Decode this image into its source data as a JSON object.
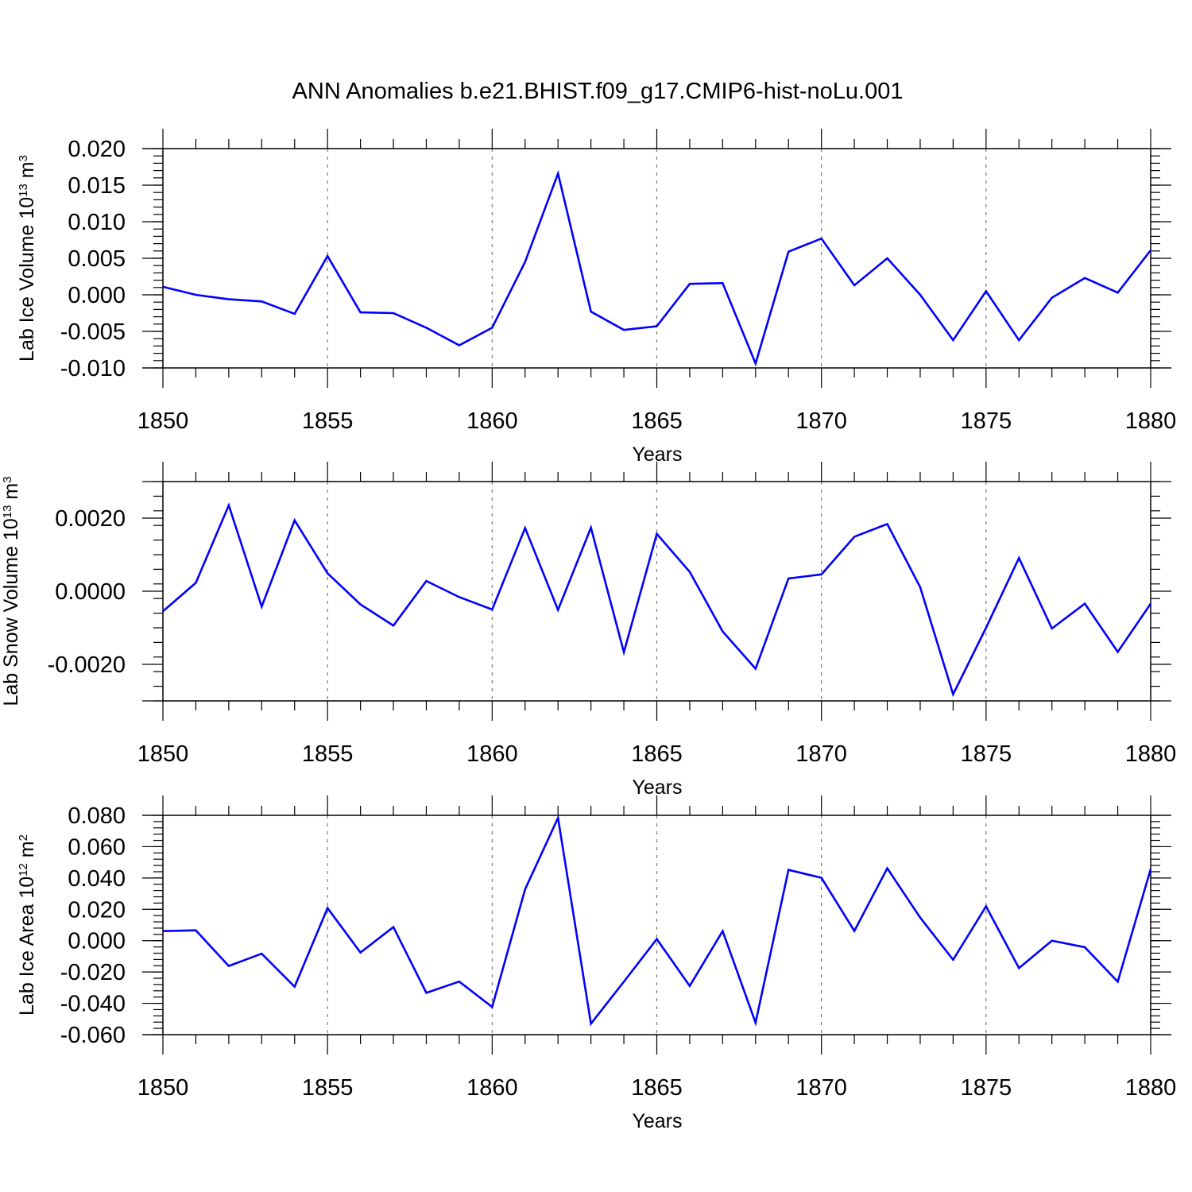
{
  "title": "ANN Anomalies b.e21.BHIST.f09_g17.CMIP6-hist-noLu.001",
  "line_color": "#0000ff",
  "chart_data": [
    {
      "type": "line",
      "ylabel": {
        "prefix": "Lab Ice Volume 10",
        "exponent": "13",
        "middle": " m",
        "unit_power": "3"
      },
      "xlabel": "Years",
      "xlim": [
        1850,
        1880
      ],
      "ylim": [
        -0.01,
        0.02
      ],
      "x_ticks": [
        "1850",
        "1855",
        "1860",
        "1865",
        "1870",
        "1875",
        "1880"
      ],
      "y_ticks": [
        "-0.010",
        "-0.005",
        "0.000",
        "0.005",
        "0.010",
        "0.015",
        "0.020"
      ],
      "grid": "vertical dashed at labeled years",
      "series": [
        {
          "x": [
            1850,
            1851,
            1852,
            1853,
            1854,
            1855,
            1856,
            1857,
            1858,
            1859,
            1860,
            1861,
            1862,
            1863,
            1864,
            1865,
            1866,
            1867,
            1868,
            1869,
            1870,
            1871,
            1872,
            1873,
            1874,
            1875,
            1876,
            1877,
            1878,
            1879,
            1880
          ],
          "values": [
            0.0011,
            0.0,
            -0.0006,
            -0.0009,
            -0.0026,
            0.0053,
            -0.0024,
            -0.0025,
            -0.0045,
            -0.0069,
            -0.0045,
            0.0045,
            0.0166,
            -0.0023,
            -0.0048,
            -0.0043,
            0.0015,
            0.0016,
            -0.0094,
            0.0059,
            0.0077,
            0.0013,
            0.005,
            0.0,
            -0.0062,
            0.0005,
            -0.0062,
            -0.0004,
            0.0023,
            0.0003,
            0.0061
          ]
        }
      ]
    },
    {
      "type": "line",
      "ylabel": {
        "prefix": "Lab Snow Volume 10",
        "exponent": "13",
        "middle": " m",
        "unit_power": "3"
      },
      "xlabel": "Years",
      "xlim": [
        1850,
        1880
      ],
      "ylim": [
        -0.003,
        0.003
      ],
      "x_ticks": [
        "1850",
        "1855",
        "1860",
        "1865",
        "1870",
        "1875",
        "1880"
      ],
      "y_ticks": [
        "-0.0020",
        "0.0000",
        "0.0020"
      ],
      "grid": "vertical dashed at labeled years",
      "series": [
        {
          "x": [
            1850,
            1851,
            1852,
            1853,
            1854,
            1855,
            1856,
            1857,
            1858,
            1859,
            1860,
            1861,
            1862,
            1863,
            1864,
            1865,
            1866,
            1867,
            1868,
            1869,
            1870,
            1871,
            1872,
            1873,
            1874,
            1875,
            1876,
            1877,
            1878,
            1879,
            1880
          ],
          "values": [
            -0.00055,
            0.00023,
            0.00235,
            -0.00042,
            0.00194,
            0.00049,
            -0.00036,
            -0.00094,
            0.00028,
            -0.00016,
            -0.0005,
            0.00173,
            -0.00051,
            0.00174,
            -0.00167,
            0.00157,
            0.00053,
            -0.0011,
            -0.00212,
            0.00035,
            0.00046,
            0.00149,
            0.00184,
            0.00011,
            -0.00282,
            -0.001,
            0.00091,
            -0.00102,
            -0.00034,
            -0.00166,
            -0.00034
          ]
        }
      ]
    },
    {
      "type": "line",
      "ylabel": {
        "prefix": "Lab Ice Area 10",
        "exponent": "12",
        "middle": " m",
        "unit_power": "2"
      },
      "xlabel": "Years",
      "xlim": [
        1850,
        1880
      ],
      "ylim": [
        -0.06,
        0.08
      ],
      "x_ticks": [
        "1850",
        "1855",
        "1860",
        "1865",
        "1870",
        "1875",
        "1880"
      ],
      "y_ticks": [
        "-0.060",
        "-0.040",
        "-0.020",
        "0.000",
        "0.020",
        "0.040",
        "0.060",
        "0.080"
      ],
      "grid": "vertical dashed at labeled years",
      "series": [
        {
          "x": [
            1850,
            1851,
            1852,
            1853,
            1854,
            1855,
            1856,
            1857,
            1858,
            1859,
            1860,
            1861,
            1862,
            1863,
            1864,
            1865,
            1866,
            1867,
            1868,
            1869,
            1870,
            1871,
            1872,
            1873,
            1874,
            1875,
            1876,
            1877,
            1878,
            1879,
            1880
          ],
          "values": [
            0.0061,
            0.0066,
            -0.0162,
            -0.0083,
            -0.0294,
            0.0208,
            -0.0076,
            0.0087,
            -0.0333,
            -0.0261,
            -0.0423,
            0.0328,
            0.0784,
            -0.053,
            -0.0262,
            0.001,
            -0.0289,
            0.0061,
            -0.0524,
            0.0452,
            0.0401,
            0.0062,
            0.0462,
            0.0147,
            -0.0122,
            0.0219,
            -0.0175,
            0.0,
            -0.0042,
            -0.0262,
            0.0457
          ]
        }
      ]
    }
  ]
}
